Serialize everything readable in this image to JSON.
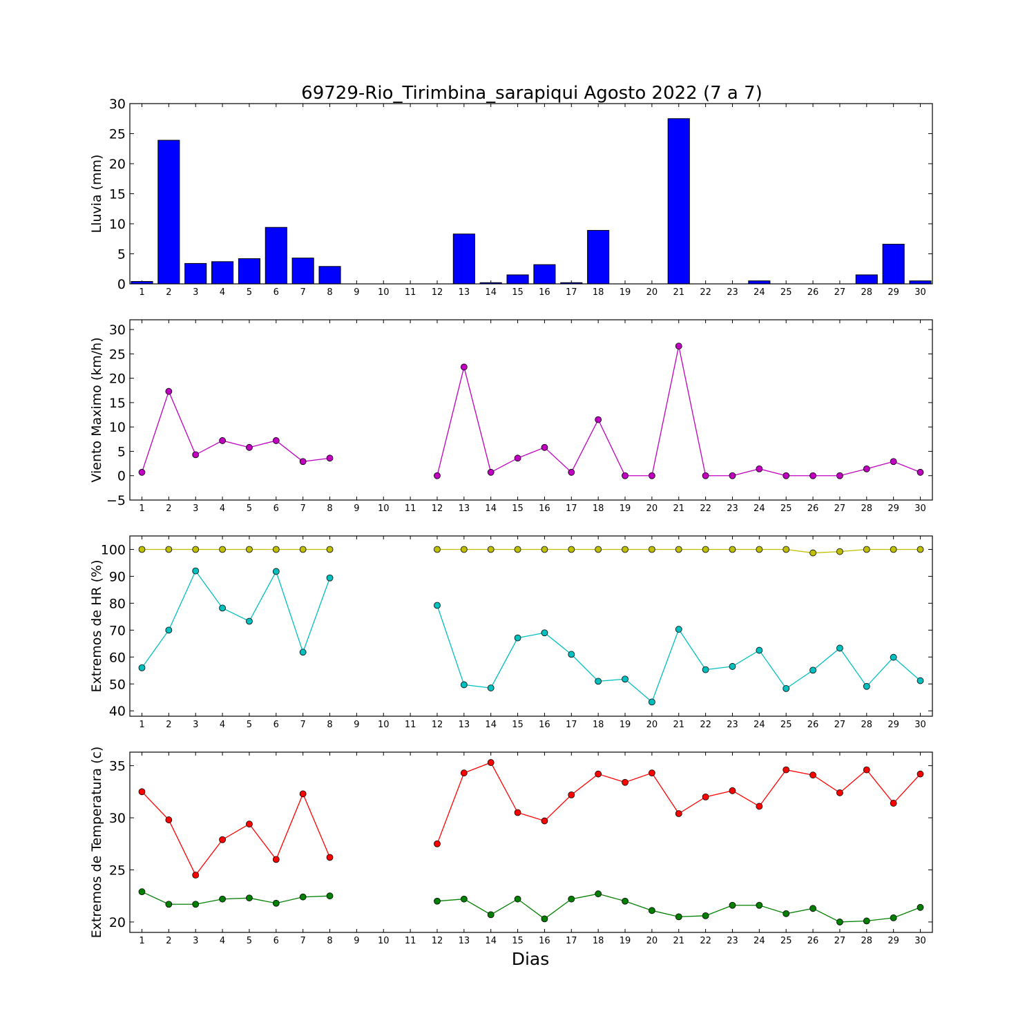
{
  "title": "69729-Rio_Tirimbina_sarapiqui Agosto 2022  (7 a 7)",
  "xlabel": "Dias",
  "chart_data": [
    {
      "type": "bar",
      "ylabel": "Lluvia (mm)",
      "ylim": [
        0,
        30
      ],
      "yticks": [
        0,
        5,
        10,
        15,
        20,
        25,
        30
      ],
      "xticks": [
        1,
        2,
        3,
        4,
        5,
        6,
        7,
        8,
        9,
        10,
        11,
        12,
        13,
        14,
        15,
        16,
        17,
        18,
        19,
        20,
        21,
        22,
        23,
        24,
        25,
        26,
        27,
        28,
        29,
        30
      ],
      "x": [
        1,
        2,
        3,
        4,
        5,
        6,
        7,
        8,
        9,
        10,
        11,
        12,
        13,
        14,
        15,
        16,
        17,
        18,
        19,
        20,
        21,
        22,
        23,
        24,
        25,
        26,
        27,
        28,
        29,
        30
      ],
      "series": [
        {
          "color": "#0000ff",
          "values": [
            0.4,
            23.9,
            3.4,
            3.7,
            4.2,
            9.4,
            4.3,
            2.9,
            0,
            0,
            0,
            0,
            8.3,
            0.2,
            1.5,
            3.2,
            0.2,
            8.9,
            0,
            0,
            27.5,
            0,
            0,
            0.5,
            0,
            0,
            0,
            1.5,
            6.6,
            0.5
          ]
        }
      ]
    },
    {
      "type": "line",
      "ylabel": "Viento Maximo (km/h)",
      "ylim": [
        -5,
        32
      ],
      "yticks": [
        -5,
        0,
        5,
        10,
        15,
        20,
        25,
        30
      ],
      "xticks": [
        1,
        2,
        3,
        4,
        5,
        6,
        7,
        8,
        9,
        10,
        11,
        12,
        13,
        14,
        15,
        16,
        17,
        18,
        19,
        20,
        21,
        22,
        23,
        24,
        25,
        26,
        27,
        28,
        29,
        30
      ],
      "x": [
        1,
        2,
        3,
        4,
        5,
        6,
        7,
        8,
        9,
        10,
        11,
        12,
        13,
        14,
        15,
        16,
        17,
        18,
        19,
        20,
        21,
        22,
        23,
        24,
        25,
        26,
        27,
        28,
        29,
        30
      ],
      "series": [
        {
          "color": "#bf00bf",
          "values": [
            0.7,
            17.3,
            4.3,
            7.2,
            5.8,
            7.2,
            2.9,
            3.6,
            null,
            null,
            null,
            0,
            22.3,
            0.7,
            3.6,
            5.8,
            0.7,
            11.5,
            0,
            0,
            26.6,
            0,
            0,
            1.4,
            0,
            0,
            0,
            1.4,
            2.9,
            0.7
          ]
        }
      ]
    },
    {
      "type": "line",
      "ylabel": "Extremos de HR (%)",
      "ylim": [
        38,
        105
      ],
      "yticks": [
        40,
        50,
        60,
        70,
        80,
        90,
        100
      ],
      "xticks": [
        1,
        2,
        3,
        4,
        5,
        6,
        7,
        8,
        9,
        10,
        11,
        12,
        13,
        14,
        15,
        16,
        17,
        18,
        19,
        20,
        21,
        22,
        23,
        24,
        25,
        26,
        27,
        28,
        29,
        30
      ],
      "x": [
        1,
        2,
        3,
        4,
        5,
        6,
        7,
        8,
        9,
        10,
        11,
        12,
        13,
        14,
        15,
        16,
        17,
        18,
        19,
        20,
        21,
        22,
        23,
        24,
        25,
        26,
        27,
        28,
        29,
        30
      ],
      "series": [
        {
          "color": "#bfbf00",
          "values": [
            100,
            100,
            100,
            100,
            100,
            100,
            100,
            100,
            null,
            null,
            null,
            100,
            100,
            100,
            100,
            100,
            100,
            100,
            100,
            100,
            100,
            100,
            100,
            100,
            100,
            98.7,
            99.2,
            100,
            100,
            100
          ]
        },
        {
          "color": "#00bfbf",
          "values": [
            56,
            70,
            92,
            78.2,
            73.3,
            91.8,
            61.8,
            89.4,
            null,
            null,
            null,
            79.2,
            49.7,
            48.5,
            67.1,
            69,
            61,
            51,
            51.8,
            43.3,
            70.3,
            55.3,
            56.5,
            62.5,
            48.3,
            55.1,
            63.3,
            49.1,
            59.9,
            51.2
          ]
        }
      ]
    },
    {
      "type": "line",
      "ylabel": "Extremos de Temperatura (c)",
      "ylim": [
        19,
        36.3
      ],
      "yticks": [
        20,
        25,
        30,
        35
      ],
      "xticks": [
        1,
        2,
        3,
        4,
        5,
        6,
        7,
        8,
        9,
        10,
        11,
        12,
        13,
        14,
        15,
        16,
        17,
        18,
        19,
        20,
        21,
        22,
        23,
        24,
        25,
        26,
        27,
        28,
        29,
        30
      ],
      "x": [
        1,
        2,
        3,
        4,
        5,
        6,
        7,
        8,
        9,
        10,
        11,
        12,
        13,
        14,
        15,
        16,
        17,
        18,
        19,
        20,
        21,
        22,
        23,
        24,
        25,
        26,
        27,
        28,
        29,
        30
      ],
      "series": [
        {
          "color": "#ff0000",
          "values": [
            32.5,
            29.8,
            24.5,
            27.9,
            29.4,
            26,
            32.3,
            26.2,
            null,
            null,
            null,
            27.5,
            34.3,
            35.3,
            30.5,
            29.7,
            32.2,
            34.2,
            33.4,
            34.3,
            30.4,
            32,
            32.6,
            31.1,
            34.6,
            34.1,
            32.4,
            34.6,
            31.4,
            34.2
          ]
        },
        {
          "color": "#007f00",
          "values": [
            22.9,
            21.7,
            21.7,
            22.2,
            22.3,
            21.8,
            22.4,
            22.5,
            null,
            null,
            null,
            22,
            22.2,
            20.7,
            22.2,
            20.3,
            22.2,
            22.7,
            22,
            21.1,
            20.5,
            20.6,
            21.6,
            21.6,
            20.8,
            21.3,
            20,
            20.1,
            20.4,
            21.4
          ]
        }
      ]
    }
  ]
}
